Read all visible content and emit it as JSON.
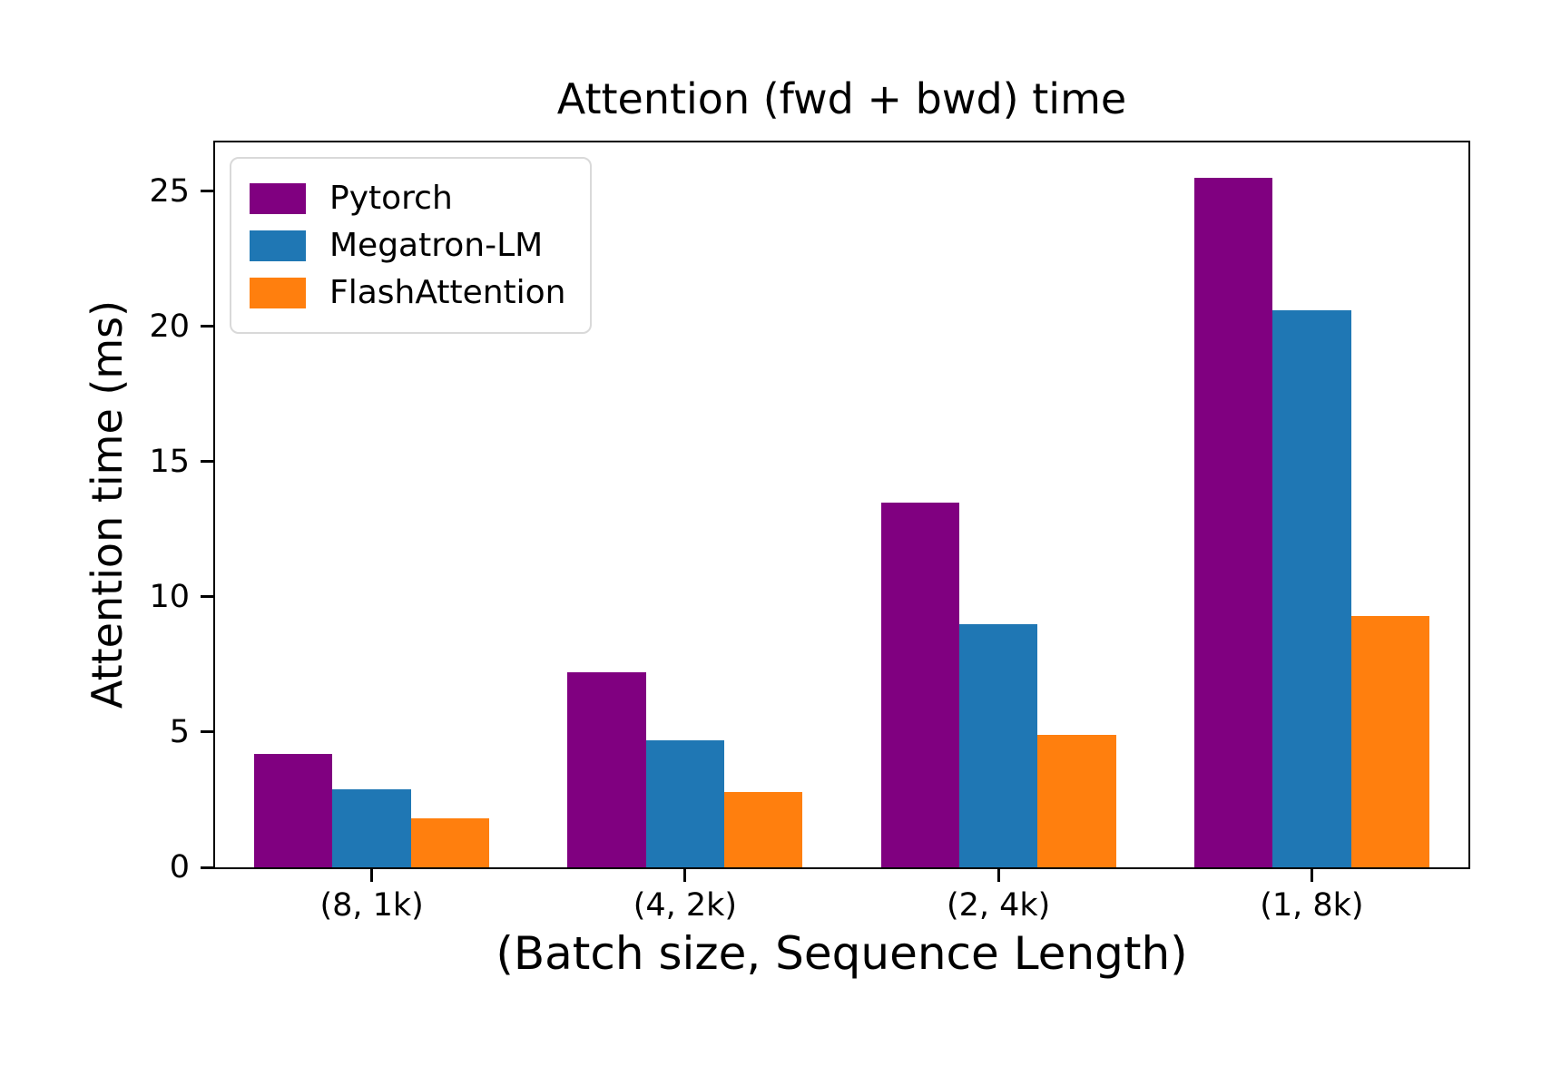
{
  "chart_data": {
    "type": "bar",
    "title": "Attention (fwd + bwd) time",
    "xlabel": "(Batch size, Sequence Length)",
    "ylabel": "Attention time (ms)",
    "categories": [
      "(8, 1k)",
      "(4, 2k)",
      "(2, 4k)",
      "(1, 8k)"
    ],
    "series": [
      {
        "name": "Pytorch",
        "color": "#800080",
        "values": [
          4.2,
          7.2,
          13.5,
          25.5
        ]
      },
      {
        "name": "Megatron-LM",
        "color": "#1f77b4",
        "values": [
          2.9,
          4.7,
          9.0,
          20.6
        ]
      },
      {
        "name": "FlashAttention",
        "color": "#ff7f0e",
        "values": [
          1.8,
          2.8,
          4.9,
          9.3
        ]
      }
    ],
    "yticks": [
      0,
      5,
      10,
      15,
      20,
      25
    ],
    "ylim": [
      0,
      26.8
    ],
    "grid": false,
    "legend_position": "upper left",
    "background_color": "#ffffff",
    "spine_color": "#000000"
  }
}
